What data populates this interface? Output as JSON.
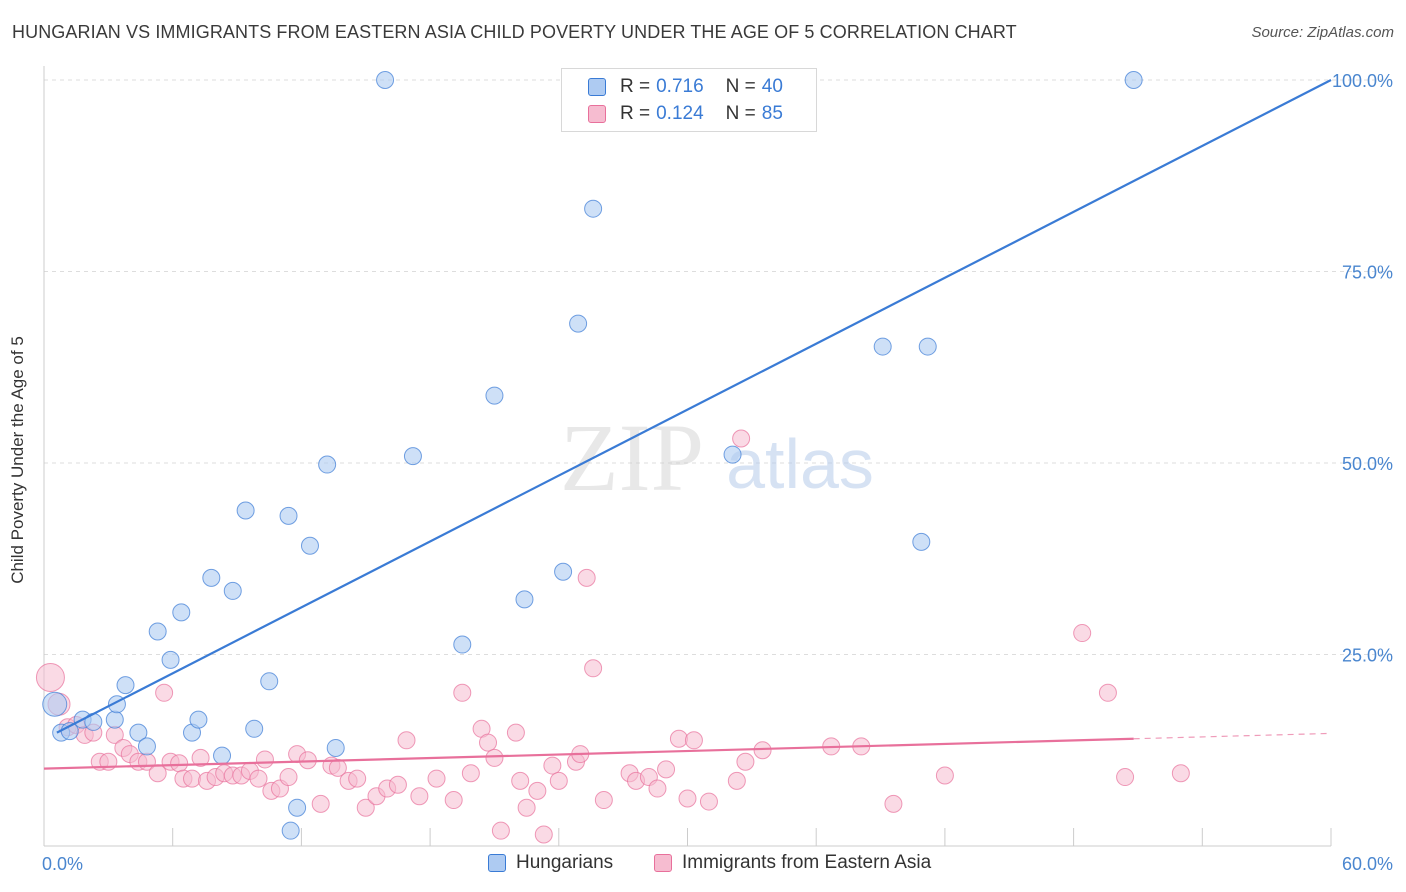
{
  "title": "HUNGARIAN VS IMMIGRANTS FROM EASTERN ASIA CHILD POVERTY UNDER THE AGE OF 5 CORRELATION CHART",
  "source": "Source: ZipAtlas.com",
  "watermark": {
    "zip": "ZIP",
    "atlas": "atlas"
  },
  "colors": {
    "blue": "#3a7bd5",
    "blue_fill": "#aecbf2",
    "pink": "#e8709b",
    "pink_fill": "#f6bcd0",
    "tick_label": "#4a86cf",
    "grid": "#dddddd"
  },
  "legend_top": {
    "rows": [
      {
        "r_label": "R =",
        "r_value": "0.716",
        "n_label": "N =",
        "n_value": "40"
      },
      {
        "r_label": "R =",
        "r_value": "0.124",
        "n_label": "N =",
        "n_value": "85"
      }
    ]
  },
  "legend_bottom": {
    "items": [
      "Hungarians",
      "Immigrants from Eastern Asia"
    ]
  },
  "chart_data": {
    "type": "scatter",
    "title": "HUNGARIAN VS IMMIGRANTS FROM EASTERN ASIA CHILD POVERTY UNDER THE AGE OF 5 CORRELATION CHART",
    "xlabel": "",
    "ylabel": "Child Poverty Under the Age of 5",
    "xlim": [
      0,
      60
    ],
    "ylim": [
      0,
      100
    ],
    "x_tick_labels": [
      "0.0%",
      "60.0%"
    ],
    "y_tick_labels": [
      "25.0%",
      "50.0%",
      "75.0%",
      "100.0%"
    ],
    "y_ticks": [
      25,
      50,
      75,
      100
    ],
    "grid": true,
    "legend_position": "top-center",
    "series": [
      {
        "name": "Hungarians",
        "color": "#3a7bd5",
        "r": 0.716,
        "n": 40,
        "trend": {
          "x": [
            0.6,
            60
          ],
          "y": [
            14.8,
            100
          ]
        },
        "points": [
          [
            0.5,
            18.5
          ],
          [
            0.8,
            14.8
          ],
          [
            1.2,
            15.0
          ],
          [
            1.8,
            16.5
          ],
          [
            2.3,
            16.2
          ],
          [
            3.3,
            16.5
          ],
          [
            3.4,
            18.5
          ],
          [
            3.8,
            21.0
          ],
          [
            4.4,
            14.8
          ],
          [
            4.8,
            13.0
          ],
          [
            5.3,
            28.0
          ],
          [
            5.9,
            24.3
          ],
          [
            6.4,
            30.5
          ],
          [
            6.9,
            14.8
          ],
          [
            7.2,
            16.5
          ],
          [
            7.8,
            35.0
          ],
          [
            8.3,
            11.8
          ],
          [
            8.8,
            33.3
          ],
          [
            9.4,
            43.8
          ],
          [
            9.8,
            15.3
          ],
          [
            10.5,
            21.5
          ],
          [
            11.4,
            43.1
          ],
          [
            11.5,
            2.0
          ],
          [
            11.8,
            5.0
          ],
          [
            12.4,
            39.2
          ],
          [
            13.2,
            49.8
          ],
          [
            13.6,
            12.8
          ],
          [
            15.9,
            100.0
          ],
          [
            17.2,
            50.9
          ],
          [
            19.5,
            26.3
          ],
          [
            21.0,
            58.8
          ],
          [
            22.4,
            32.2
          ],
          [
            24.2,
            35.8
          ],
          [
            24.9,
            68.2
          ],
          [
            25.6,
            83.2
          ],
          [
            32.1,
            51.1
          ],
          [
            39.1,
            65.2
          ],
          [
            40.9,
            39.7
          ],
          [
            41.2,
            65.2
          ],
          [
            50.8,
            100.0
          ]
        ]
      },
      {
        "name": "Immigrants from Eastern Asia",
        "color": "#e8709b",
        "r": 0.124,
        "n": 85,
        "trend": {
          "x": [
            0,
            50.8
          ],
          "y": [
            10.1,
            14.0
          ]
        },
        "trend_dashed": {
          "x": [
            50.8,
            60
          ],
          "y": [
            14.0,
            14.7
          ]
        },
        "points": [
          [
            0.3,
            22.0
          ],
          [
            0.7,
            18.5
          ],
          [
            1.1,
            15.5
          ],
          [
            1.5,
            15.8
          ],
          [
            1.9,
            14.5
          ],
          [
            2.3,
            14.8
          ],
          [
            2.6,
            11.0
          ],
          [
            3.0,
            11.0
          ],
          [
            3.3,
            14.5
          ],
          [
            3.7,
            12.8
          ],
          [
            4.0,
            12.0
          ],
          [
            4.4,
            11.0
          ],
          [
            4.8,
            11.0
          ],
          [
            5.3,
            9.5
          ],
          [
            5.6,
            20.0
          ],
          [
            5.9,
            11.0
          ],
          [
            6.3,
            10.8
          ],
          [
            6.5,
            8.8
          ],
          [
            6.9,
            8.8
          ],
          [
            7.3,
            11.5
          ],
          [
            7.6,
            8.5
          ],
          [
            8.0,
            9.0
          ],
          [
            8.4,
            9.5
          ],
          [
            8.8,
            9.2
          ],
          [
            9.2,
            9.2
          ],
          [
            9.6,
            9.8
          ],
          [
            10.0,
            8.8
          ],
          [
            10.3,
            11.3
          ],
          [
            10.6,
            7.2
          ],
          [
            11.0,
            7.5
          ],
          [
            11.4,
            9.0
          ],
          [
            11.8,
            12.0
          ],
          [
            12.3,
            11.2
          ],
          [
            12.9,
            5.5
          ],
          [
            13.4,
            10.5
          ],
          [
            13.7,
            10.2
          ],
          [
            14.2,
            8.5
          ],
          [
            14.6,
            8.8
          ],
          [
            15.0,
            5.0
          ],
          [
            15.5,
            6.5
          ],
          [
            16.0,
            7.5
          ],
          [
            16.5,
            8.0
          ],
          [
            16.9,
            13.8
          ],
          [
            17.5,
            6.5
          ],
          [
            18.3,
            8.8
          ],
          [
            19.1,
            6.0
          ],
          [
            19.5,
            20.0
          ],
          [
            19.9,
            9.5
          ],
          [
            20.4,
            15.3
          ],
          [
            20.7,
            13.5
          ],
          [
            21.0,
            11.5
          ],
          [
            21.3,
            2.0
          ],
          [
            22.0,
            14.8
          ],
          [
            22.2,
            8.5
          ],
          [
            22.5,
            5.0
          ],
          [
            23.0,
            7.2
          ],
          [
            23.3,
            1.5
          ],
          [
            23.7,
            10.5
          ],
          [
            24.0,
            8.5
          ],
          [
            24.8,
            11.0
          ],
          [
            25.0,
            12.0
          ],
          [
            25.6,
            23.2
          ],
          [
            25.3,
            35.0
          ],
          [
            26.1,
            6.0
          ],
          [
            27.3,
            9.5
          ],
          [
            27.6,
            8.5
          ],
          [
            28.2,
            9.0
          ],
          [
            28.6,
            7.5
          ],
          [
            29.0,
            10.0
          ],
          [
            29.6,
            14.0
          ],
          [
            30.0,
            6.2
          ],
          [
            30.3,
            13.8
          ],
          [
            31.0,
            5.8
          ],
          [
            32.3,
            8.5
          ],
          [
            32.5,
            53.2
          ],
          [
            32.7,
            11.0
          ],
          [
            33.5,
            12.5
          ],
          [
            36.7,
            13.0
          ],
          [
            38.1,
            13.0
          ],
          [
            39.6,
            5.5
          ],
          [
            42.0,
            9.2
          ],
          [
            48.4,
            27.8
          ],
          [
            49.6,
            20.0
          ],
          [
            50.4,
            9.0
          ],
          [
            53.0,
            9.5
          ]
        ]
      }
    ]
  }
}
